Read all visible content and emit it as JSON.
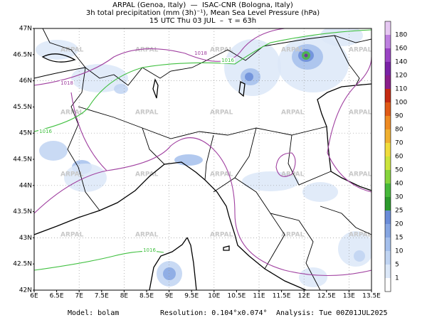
{
  "header": {
    "line1": "ARPAL (Genoa, Italy)  —  ISAC-CNR (Bologna, Italy)",
    "line2": "3h total precipitation (mm (3h)⁻¹), Mean Sea Level Pressure (hPa)",
    "line3": "15 UTC Thu 03 JUL  –  τ = 63h"
  },
  "map": {
    "lon_labels": [
      "6E",
      "6.5E",
      "7E",
      "7.5E",
      "8E",
      "8.5E",
      "9E",
      "9.5E",
      "10E",
      "10.5E",
      "11E",
      "11.5E",
      "12E",
      "12.5E",
      "13E",
      "13.5E"
    ],
    "lat_labels": [
      "42N",
      "42.5N",
      "43N",
      "43.5N",
      "44N",
      "44.5N",
      "45N",
      "45.5N",
      "46N",
      "46.5N",
      "47N"
    ],
    "contour_labels": [
      "1018",
      "1016",
      "1018",
      "1016",
      "1016"
    ],
    "watermark": "ARPAL"
  },
  "colorbar": {
    "labels": [
      "1",
      "5",
      "10",
      "15",
      "20",
      "25",
      "30",
      "40",
      "50",
      "60",
      "70",
      "80",
      "90",
      "100",
      "110",
      "120",
      "140",
      "160",
      "180"
    ],
    "colors": [
      "#ffffff",
      "#dce8f8",
      "#c0d4f2",
      "#a4bfec",
      "#86a6e2",
      "#6a8cd8",
      "#2c9a2c",
      "#46b83a",
      "#86d43c",
      "#cce43c",
      "#f0dc3c",
      "#f0b030",
      "#ee8a22",
      "#e05a16",
      "#c42a12",
      "#8a1e8a",
      "#7a22a6",
      "#9a44c4",
      "#be80e0",
      "#e6c8f2"
    ]
  },
  "footer": {
    "model": "Model: bolam",
    "resolution": "Resolution: 0.104°x0.074°",
    "analysis": "Analysis: Tue 00Z01JUL2025"
  }
}
